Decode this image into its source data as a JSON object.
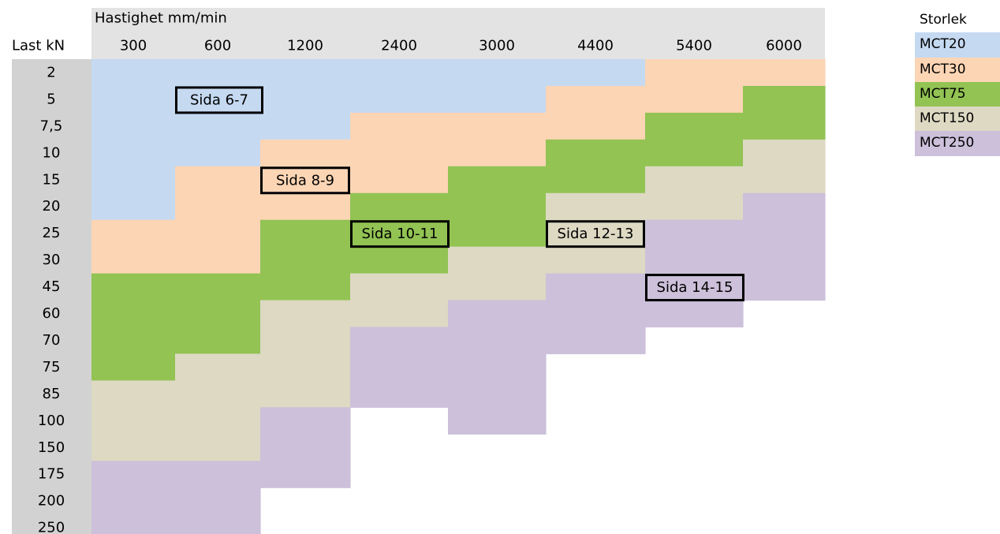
{
  "chart_data": {
    "type": "heatmap",
    "x_axis_title": "Hastighet mm/min",
    "y_axis_title": "Last kN",
    "columns": [
      "300",
      "600",
      "1200",
      "2400",
      "3000",
      "4400",
      "5400",
      "6000"
    ],
    "rows": [
      "2",
      "5",
      "7,5",
      "10",
      "15",
      "20",
      "25",
      "30",
      "45",
      "60",
      "70",
      "75",
      "85",
      "100",
      "150",
      "175",
      "200",
      "250"
    ],
    "size_order": [
      "MCT20",
      "MCT30",
      "MCT75",
      "MCT150",
      "MCT250"
    ],
    "column_size_bands": [
      {
        "column": "300",
        "MCT20": [
          "2",
          "20"
        ],
        "MCT30": [
          "25",
          "30"
        ],
        "MCT75": [
          "45",
          "75"
        ],
        "MCT150": [
          "85",
          "150"
        ],
        "MCT250": [
          "175",
          "250"
        ]
      },
      {
        "column": "600",
        "MCT20": [
          "2",
          "10"
        ],
        "MCT30": [
          "15",
          "30"
        ],
        "MCT75": [
          "45",
          "70"
        ],
        "MCT150": [
          "75",
          "150"
        ],
        "MCT250": [
          "175",
          "250"
        ]
      },
      {
        "column": "1200",
        "MCT20": [
          "2",
          "7,5"
        ],
        "MCT30": [
          "10",
          "20"
        ],
        "MCT75": [
          "25",
          "45"
        ],
        "MCT150": [
          "60",
          "85"
        ],
        "MCT250": [
          "100",
          "175"
        ]
      },
      {
        "column": "2400",
        "MCT20": [
          "2",
          "5"
        ],
        "MCT30": [
          "7,5",
          "15"
        ],
        "MCT75": [
          "20",
          "30"
        ],
        "MCT150": [
          "45",
          "60"
        ],
        "MCT250": [
          "70",
          "85"
        ]
      },
      {
        "column": "3000",
        "MCT20": [
          "2",
          "5"
        ],
        "MCT30": [
          "7,5",
          "10"
        ],
        "MCT75": [
          "15",
          "25"
        ],
        "MCT150": [
          "30",
          "45"
        ],
        "MCT250": [
          "60",
          "100"
        ]
      },
      {
        "column": "4400",
        "MCT20": [
          "2",
          "2"
        ],
        "MCT30": [
          "5",
          "7,5"
        ],
        "MCT75": [
          "10",
          "15"
        ],
        "MCT150": [
          "20",
          "30"
        ],
        "MCT250": [
          "45",
          "70"
        ]
      },
      {
        "column": "5400",
        "MCT20": null,
        "MCT30": [
          "2",
          "5"
        ],
        "MCT75": [
          "7,5",
          "15"
        ],
        "MCT150": [
          "15",
          "20"
        ],
        "MCT250": [
          "25",
          "60"
        ]
      },
      {
        "column": "6000",
        "MCT20": null,
        "MCT30": [
          "2",
          "2"
        ],
        "MCT75": [
          "5",
          "7,5"
        ],
        "MCT150": [
          "10",
          "15"
        ],
        "MCT250": [
          "20",
          "45"
        ]
      }
    ],
    "annotations": [
      {
        "text": "Sida 6-7",
        "column": "600",
        "row": "5"
      },
      {
        "text": "Sida 8-9",
        "column": "1200",
        "row": "15"
      },
      {
        "text": "Sida 10-11",
        "column": "2400",
        "row": "25"
      },
      {
        "text": "Sida 12-13",
        "column": "4400",
        "row": "25"
      },
      {
        "text": "Sida 14-15",
        "column": "5400",
        "row": "45"
      }
    ],
    "legend": {
      "title": "Storlek",
      "placement": "top-right",
      "items": [
        {
          "label": "MCT20",
          "color": "#c5d9f1"
        },
        {
          "label": "MCT30",
          "color": "#fcd5b5"
        },
        {
          "label": "MCT75",
          "color": "#92c353"
        },
        {
          "label": "MCT150",
          "color": "#ddd9c3"
        },
        {
          "label": "MCT250",
          "color": "#ccc0da"
        }
      ]
    },
    "header_background": "#e3e3e3",
    "row_label_background": "#d2d2d2"
  }
}
